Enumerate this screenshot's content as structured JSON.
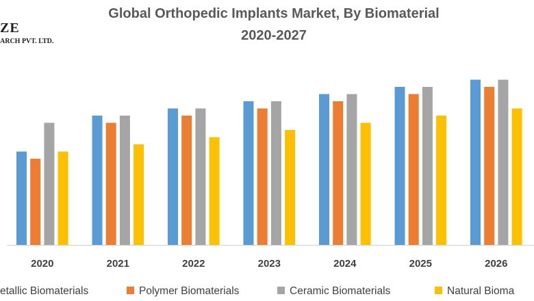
{
  "logo": {
    "main_text": "ZE",
    "sub_text": "ARCH PVT. LTD."
  },
  "chart_data": {
    "type": "bar",
    "title_line1": "Global Orthopedic Implants Market, By Biomaterial",
    "title_line2": "2020-2027",
    "categories": [
      "2020",
      "2021",
      "2022",
      "2023",
      "2024",
      "2025",
      "2026"
    ],
    "series": [
      {
        "name": "etallic Biomaterials",
        "color": "#5B9BD5",
        "values": [
          13,
          18,
          19,
          20,
          21,
          22,
          23
        ]
      },
      {
        "name": "Polymer Biomaterials",
        "color": "#ED7D31",
        "values": [
          12,
          17,
          18,
          19,
          20,
          21,
          22
        ]
      },
      {
        "name": "Ceramic Biomaterials",
        "color": "#A5A5A5",
        "values": [
          17,
          18,
          19,
          20,
          21,
          22,
          23
        ]
      },
      {
        "name": "Natural Bioma",
        "color": "#FFC000",
        "values": [
          13,
          14,
          15,
          16,
          17,
          18,
          19
        ]
      }
    ],
    "ylim": [
      0,
      25
    ],
    "grid": false,
    "legend_position": "bottom"
  }
}
